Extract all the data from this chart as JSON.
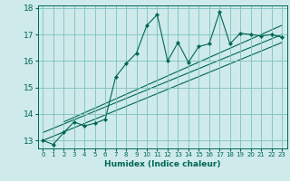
{
  "xlabel": "Humidex (Indice chaleur)",
  "bg_color": "#ceeaea",
  "grid_color": "#7fbfbf",
  "line_color": "#006655",
  "xlim": [
    -0.5,
    23.5
  ],
  "ylim": [
    12.7,
    18.1
  ],
  "yticks": [
    13,
    14,
    15,
    16,
    17,
    18
  ],
  "xticks": [
    0,
    1,
    2,
    3,
    4,
    5,
    6,
    7,
    8,
    9,
    10,
    11,
    12,
    13,
    14,
    15,
    16,
    17,
    18,
    19,
    20,
    21,
    22,
    23
  ],
  "main_x": [
    0,
    1,
    2,
    3,
    4,
    5,
    6,
    7,
    8,
    9,
    10,
    11,
    12,
    13,
    14,
    15,
    16,
    17,
    18,
    19,
    20,
    21,
    22,
    23
  ],
  "main_y": [
    13.0,
    12.85,
    13.3,
    13.7,
    13.55,
    13.65,
    13.8,
    15.4,
    15.9,
    16.3,
    17.35,
    17.75,
    16.0,
    16.7,
    15.95,
    16.55,
    16.65,
    17.85,
    16.65,
    17.05,
    17.0,
    16.95,
    17.0,
    16.9
  ],
  "line1_x": [
    0,
    23
  ],
  "line1_y": [
    13.0,
    16.7
  ],
  "line2_x": [
    0,
    23
  ],
  "line2_y": [
    13.3,
    17.0
  ],
  "line3_x": [
    2,
    23
  ],
  "line3_y": [
    13.7,
    17.35
  ]
}
